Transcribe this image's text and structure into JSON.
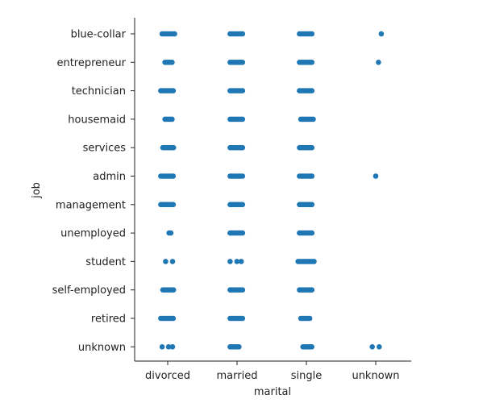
{
  "chart_data": {
    "type": "scatter",
    "subtype": "categorical strip plot",
    "xlabel": "marital",
    "ylabel": "job",
    "x_categories": [
      "divorced",
      "married",
      "single",
      "unknown"
    ],
    "y_categories": [
      "blue-collar",
      "entrepreneur",
      "technician",
      "housemaid",
      "services",
      "admin",
      "management",
      "unemployed",
      "student",
      "self-employed",
      "retired",
      "unknown"
    ],
    "point_color": "#1f77b4",
    "grid": false,
    "legend": "none",
    "strips": [
      {
        "x": "divorced",
        "y": "blue-collar",
        "jitter": [
          -0.08,
          0.1
        ]
      },
      {
        "x": "married",
        "y": "blue-collar",
        "jitter": [
          -0.1,
          0.1
        ]
      },
      {
        "x": "single",
        "y": "blue-collar",
        "jitter": [
          -0.1,
          0.1
        ]
      },
      {
        "x": "unknown",
        "y": "blue-collar",
        "jitter": [
          0.08,
          0.08
        ]
      },
      {
        "x": "divorced",
        "y": "entrepreneur",
        "jitter": [
          -0.04,
          0.08
        ]
      },
      {
        "x": "married",
        "y": "entrepreneur",
        "jitter": [
          -0.1,
          0.1
        ]
      },
      {
        "x": "single",
        "y": "entrepreneur",
        "jitter": [
          -0.1,
          0.08
        ]
      },
      {
        "x": "unknown",
        "y": "entrepreneur",
        "jitter": [
          0.04,
          0.04
        ]
      },
      {
        "x": "divorced",
        "y": "technician",
        "jitter": [
          -0.1,
          0.1
        ]
      },
      {
        "x": "married",
        "y": "technician",
        "jitter": [
          -0.1,
          0.1
        ]
      },
      {
        "x": "single",
        "y": "technician",
        "jitter": [
          -0.1,
          0.1
        ]
      },
      {
        "x": "divorced",
        "y": "housemaid",
        "jitter": [
          -0.04,
          0.07
        ]
      },
      {
        "x": "married",
        "y": "housemaid",
        "jitter": [
          -0.1,
          0.1
        ]
      },
      {
        "x": "single",
        "y": "housemaid",
        "jitter": [
          -0.08,
          0.1
        ]
      },
      {
        "x": "divorced",
        "y": "services",
        "jitter": [
          -0.07,
          0.1
        ]
      },
      {
        "x": "married",
        "y": "services",
        "jitter": [
          -0.1,
          0.1
        ]
      },
      {
        "x": "single",
        "y": "services",
        "jitter": [
          -0.1,
          0.1
        ]
      },
      {
        "x": "divorced",
        "y": "admin",
        "jitter": [
          -0.1,
          0.1
        ]
      },
      {
        "x": "married",
        "y": "admin",
        "jitter": [
          -0.1,
          0.1
        ]
      },
      {
        "x": "single",
        "y": "admin",
        "jitter": [
          -0.1,
          0.1
        ]
      },
      {
        "x": "unknown",
        "y": "admin",
        "jitter": [
          0.0,
          0.0
        ]
      },
      {
        "x": "divorced",
        "y": "management",
        "jitter": [
          -0.1,
          0.08
        ]
      },
      {
        "x": "married",
        "y": "management",
        "jitter": [
          -0.1,
          0.1
        ]
      },
      {
        "x": "single",
        "y": "management",
        "jitter": [
          -0.1,
          0.08
        ]
      },
      {
        "x": "divorced",
        "y": "unemployed",
        "jitter": [
          0.02,
          0.07
        ]
      },
      {
        "x": "married",
        "y": "unemployed",
        "jitter": [
          -0.1,
          0.1
        ]
      },
      {
        "x": "single",
        "y": "unemployed",
        "jitter": [
          -0.1,
          0.08
        ]
      },
      {
        "x": "divorced",
        "y": "student",
        "jitter": [
          -0.03,
          0.07
        ],
        "sparse": true
      },
      {
        "x": "married",
        "y": "student",
        "jitter": [
          -0.1,
          0.06
        ],
        "sparse": true
      },
      {
        "x": "single",
        "y": "student",
        "jitter": [
          -0.12,
          0.12
        ]
      },
      {
        "x": "divorced",
        "y": "self-employed",
        "jitter": [
          -0.07,
          0.1
        ]
      },
      {
        "x": "married",
        "y": "self-employed",
        "jitter": [
          -0.1,
          0.1
        ]
      },
      {
        "x": "single",
        "y": "self-employed",
        "jitter": [
          -0.1,
          0.08
        ]
      },
      {
        "x": "divorced",
        "y": "retired",
        "jitter": [
          -0.1,
          0.1
        ]
      },
      {
        "x": "married",
        "y": "retired",
        "jitter": [
          -0.1,
          0.1
        ]
      },
      {
        "x": "single",
        "y": "retired",
        "jitter": [
          -0.08,
          0.07
        ]
      },
      {
        "x": "divorced",
        "y": "unknown",
        "jitter": [
          -0.08,
          0.07
        ],
        "sparse": true
      },
      {
        "x": "married",
        "y": "unknown",
        "jitter": [
          -0.1,
          0.03
        ]
      },
      {
        "x": "single",
        "y": "unknown",
        "jitter": [
          -0.05,
          0.08
        ]
      },
      {
        "x": "unknown",
        "y": "unknown",
        "jitter": [
          -0.05,
          0.05
        ],
        "sparse": true
      }
    ]
  }
}
